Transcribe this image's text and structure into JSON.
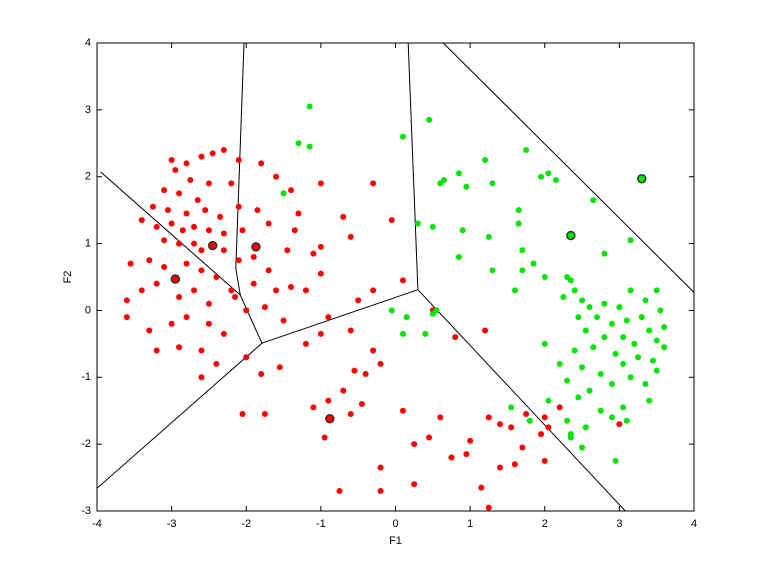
{
  "chart_data": {
    "type": "scatter",
    "xlabel": "F1",
    "ylabel": "F2",
    "xlim": [
      -4,
      4
    ],
    "ylim": [
      -3,
      4
    ],
    "xticks": [
      -4,
      -3,
      -2,
      -1,
      0,
      1,
      2,
      3,
      4
    ],
    "yticks": [
      -3,
      -2,
      -1,
      0,
      1,
      2,
      3,
      4
    ],
    "series": [
      {
        "color": "#ff0000",
        "x": [
          -3.0,
          -2.95,
          -2.8,
          -2.6,
          -2.45,
          -2.3,
          -2.1,
          -1.8,
          -1.6,
          -1.4,
          -2.75,
          -2.5,
          -2.2,
          -3.1,
          -2.9,
          -2.65,
          -3.25,
          -3.05,
          -2.8,
          -2.55,
          -2.35,
          -2.1,
          -1.85,
          -3.4,
          -3.2,
          -3.0,
          -2.85,
          -2.7,
          -2.5,
          -2.3,
          -2.05,
          -1.7,
          -1.35,
          -3.1,
          -2.9,
          -2.7,
          -2.6,
          -2.3,
          -2.1,
          -1.9,
          -1.7,
          -1.45,
          -3.55,
          -3.3,
          -3.1,
          -2.8,
          -2.6,
          -2.4,
          -2.2,
          -1.9,
          -1.6,
          -1.4,
          -3.6,
          -3.4,
          -3.2,
          -2.9,
          -2.7,
          -2.5,
          -2.15,
          -3.6,
          -3.3,
          -3.0,
          -2.8,
          -2.5,
          -2.3,
          -2.0,
          -1.75,
          -1.5,
          -3.2,
          -2.9,
          -2.6,
          -2.4,
          -2.6,
          -2.0,
          -1.8,
          -1.55,
          -1.75,
          -2.05,
          -1.2,
          -1.0,
          -0.9,
          -0.6,
          -0.5,
          -0.3,
          -0.2,
          -0.4,
          -0.55,
          -0.7,
          -0.9,
          -1.1,
          -0.95,
          -0.6,
          -0.45,
          -0.75,
          -0.2,
          -0.2,
          0.1,
          0.25,
          0.25,
          0.45,
          0.6,
          0.75,
          0.95,
          1.0,
          1.25,
          1.4,
          1.55,
          1.15,
          1.25,
          1.4,
          1.6,
          1.7,
          1.95,
          2.05,
          2.0,
          1.75,
          2.2,
          2.0,
          3.0,
          0.8,
          1.2,
          0.5,
          0.1,
          -0.3,
          -0.6,
          -1.0,
          -0.7,
          -1.1,
          -1.0,
          -1.2,
          -0.3,
          -1.0,
          -1.3,
          -0.05
        ],
        "y": [
          2.25,
          2.1,
          2.2,
          2.3,
          2.35,
          2.4,
          2.25,
          2.2,
          2.0,
          1.8,
          1.95,
          1.9,
          1.9,
          1.8,
          1.75,
          1.65,
          1.55,
          1.5,
          1.45,
          1.5,
          1.4,
          1.55,
          1.5,
          1.35,
          1.25,
          1.3,
          1.2,
          1.25,
          1.2,
          1.15,
          1.2,
          1.3,
          1.2,
          1.05,
          1.0,
          1.0,
          0.9,
          0.9,
          0.75,
          0.8,
          0.6,
          0.9,
          0.7,
          0.75,
          0.65,
          0.7,
          0.6,
          0.5,
          0.3,
          0.4,
          0.3,
          0.35,
          0.15,
          0.3,
          0.4,
          0.2,
          0.3,
          0.1,
          0.2,
          -0.1,
          -0.3,
          -0.2,
          -0.1,
          -0.2,
          -0.35,
          0.0,
          0.05,
          -0.15,
          -0.6,
          -0.55,
          -0.6,
          -0.8,
          -1.0,
          -0.7,
          -0.95,
          -0.85,
          -1.55,
          -1.55,
          -0.5,
          -0.35,
          -0.1,
          -0.3,
          0.15,
          -0.6,
          -0.8,
          -0.95,
          -0.9,
          -1.2,
          -1.35,
          -1.45,
          -1.9,
          -1.55,
          -1.4,
          -2.7,
          -2.35,
          -2.7,
          -1.5,
          -2.6,
          -2.0,
          -1.9,
          -1.6,
          -2.2,
          -2.15,
          -1.95,
          -1.6,
          -1.7,
          -1.75,
          -2.65,
          -2.95,
          -2.35,
          -2.3,
          -2.05,
          -1.85,
          -1.75,
          -2.25,
          -1.55,
          -1.45,
          -1.6,
          -1.7,
          -0.4,
          -0.3,
          0.0,
          0.45,
          1.9,
          1.1,
          0.95,
          1.4,
          0.85,
          0.55,
          0.3,
          0.3,
          1.9,
          1.45,
          1.35
        ]
      },
      {
        "color": "#00e600",
        "x": [
          -1.15,
          -1.3,
          -1.15,
          -1.5,
          0.1,
          0.45,
          0.65,
          0.85,
          0.6,
          0.95,
          1.2,
          1.3,
          1.75,
          1.95,
          2.05,
          2.15,
          2.65,
          1.65,
          1.65,
          0.3,
          0.5,
          0.9,
          1.25,
          1.7,
          2.3,
          2.8,
          3.15,
          0.85,
          1.3,
          1.7,
          1.6,
          1.85,
          2.0,
          2.35,
          2.4,
          2.25,
          2.5,
          2.6,
          2.8,
          3.0,
          3.15,
          3.35,
          3.5,
          2.45,
          2.7,
          2.9,
          3.1,
          3.3,
          3.55,
          2.55,
          2.8,
          3.05,
          3.4,
          3.6,
          2.4,
          2.65,
          2.95,
          3.2,
          3.5,
          2.0,
          2.2,
          2.5,
          2.75,
          3.05,
          3.25,
          3.45,
          2.3,
          2.6,
          2.9,
          3.15,
          3.35,
          2.05,
          2.45,
          2.75,
          3.05,
          3.4,
          2.3,
          2.55,
          2.9,
          3.1,
          2.35,
          2.5,
          1.55,
          1.8,
          2.95,
          -0.05,
          0.15,
          0.5,
          0.55,
          0.4,
          0.1,
          2.35,
          3.6,
          3.5
        ],
        "y": [
          3.05,
          2.5,
          2.45,
          1.75,
          2.6,
          2.85,
          1.95,
          2.05,
          1.9,
          1.85,
          2.25,
          1.9,
          2.4,
          2.0,
          2.05,
          1.95,
          1.65,
          1.5,
          1.3,
          1.3,
          1.25,
          1.2,
          1.1,
          0.9,
          0.5,
          0.85,
          1.05,
          0.8,
          0.6,
          0.6,
          0.3,
          0.7,
          0.5,
          0.45,
          0.3,
          0.2,
          0.15,
          0.05,
          0.1,
          0.05,
          0.3,
          0.15,
          0.3,
          -0.1,
          -0.1,
          -0.2,
          -0.15,
          -0.1,
          0.0,
          -0.3,
          -0.4,
          -0.4,
          -0.3,
          -0.25,
          -0.6,
          -0.55,
          -0.65,
          -0.5,
          -0.45,
          -0.5,
          -0.8,
          -0.85,
          -0.95,
          -0.8,
          -0.7,
          -0.75,
          -1.05,
          -1.2,
          -1.1,
          -1.0,
          -1.1,
          -1.35,
          -1.3,
          -1.5,
          -1.45,
          -1.35,
          -1.65,
          -1.75,
          -1.6,
          -1.65,
          -1.85,
          -2.05,
          -1.45,
          -1.65,
          -2.25,
          0.0,
          -0.1,
          -0.05,
          0.0,
          -0.35,
          -0.35,
          -1.9,
          -0.55,
          -0.9
        ]
      },
      {
        "color": "#ff0000",
        "edgecolor": "#333333",
        "x": [
          -2.95,
          -2.45,
          -1.87,
          -0.88
        ],
        "y": [
          0.47,
          0.97,
          0.95,
          -1.62
        ]
      },
      {
        "color": "#00e600",
        "edgecolor": "#333333",
        "x": [
          2.35,
          3.3
        ],
        "y": [
          1.12,
          1.97
        ]
      }
    ],
    "edges": [
      {
        "x": [
          -2.03,
          -2.14,
          -2.08
        ],
        "y": [
          4,
          0.63,
          0.23
        ]
      },
      {
        "x": [
          -3.95,
          -2.08
        ],
        "y": [
          2.07,
          0.23
        ]
      },
      {
        "x": [
          -2.08,
          -1.79
        ],
        "y": [
          0.23,
          -0.49
        ]
      },
      {
        "x": [
          -1.79,
          -4
        ],
        "y": [
          -0.49,
          -2.66
        ]
      },
      {
        "x": [
          -1.79,
          0.3
        ],
        "y": [
          -0.49,
          0.31
        ]
      },
      {
        "x": [
          0.17,
          0.3
        ],
        "y": [
          4,
          0.31
        ]
      },
      {
        "x": [
          0.3,
          3.08
        ],
        "y": [
          0.31,
          -3
        ]
      },
      {
        "x": [
          0.64,
          4
        ],
        "y": [
          4,
          0.27
        ]
      }
    ]
  }
}
